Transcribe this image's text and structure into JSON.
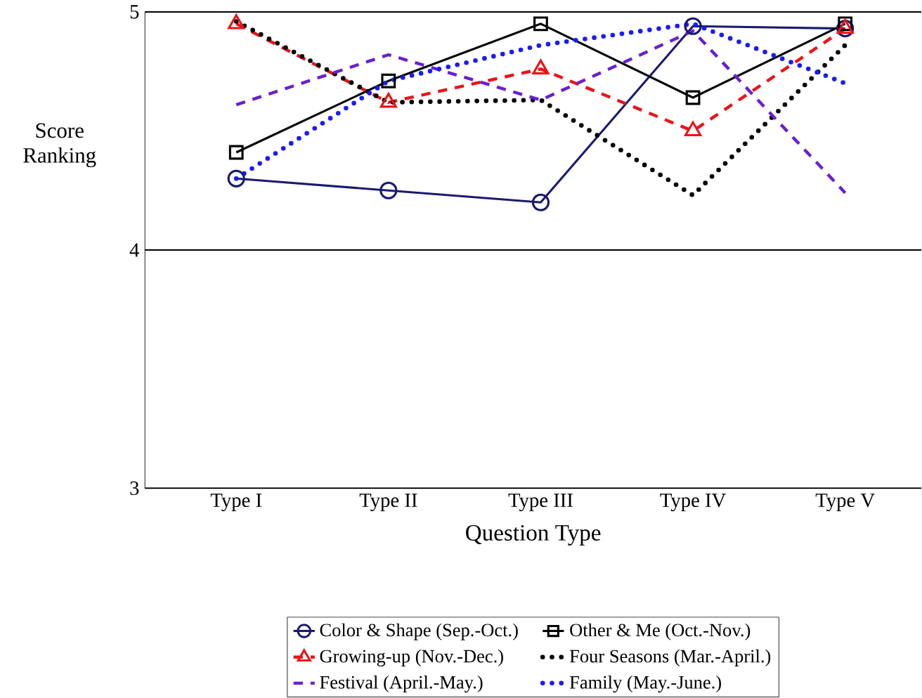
{
  "chart_data": {
    "type": "line",
    "xlabel": "Question Type",
    "ylabel": "Score Ranking",
    "categories": [
      "Type I",
      "Type II",
      "Type III",
      "Type IV",
      "Type V"
    ],
    "ylim": [
      3,
      5
    ],
    "yticks": [
      3,
      4,
      5
    ],
    "grid": "y",
    "legend": "bottom",
    "series": [
      {
        "name": "Color & Shape (Sep.-Oct.)",
        "color": "#1a1a6e",
        "marker": "circle",
        "line_style": "solid",
        "values": [
          4.3,
          4.25,
          4.2,
          4.94,
          4.93
        ]
      },
      {
        "name": "Other & Me (Oct.-Nov.)",
        "color": "#000000",
        "marker": "square",
        "line_style": "solid",
        "values": [
          4.41,
          4.71,
          4.95,
          4.64,
          4.95
        ]
      },
      {
        "name": "Growing-up (Nov.-Dec.)",
        "color": "#e8141a",
        "marker": "triangle",
        "line_style": "dashed",
        "values": [
          4.95,
          4.62,
          4.76,
          4.5,
          4.93
        ]
      },
      {
        "name": "Four Seasons (Mar.-April.)",
        "color": "#000000",
        "marker": "none",
        "line_style": "dotted",
        "values": [
          4.96,
          4.62,
          4.63,
          4.23,
          4.86
        ]
      },
      {
        "name": "Festival (April.-May.)",
        "color": "#6a1fd0",
        "marker": "none",
        "line_style": "dashed",
        "values": [
          4.61,
          4.82,
          4.63,
          4.92,
          4.24
        ]
      },
      {
        "name": "Family (May.-June.)",
        "color": "#1a1aff",
        "marker": "none",
        "line_style": "dotted",
        "values": [
          4.3,
          4.71,
          4.86,
          4.95,
          4.7
        ]
      }
    ]
  }
}
